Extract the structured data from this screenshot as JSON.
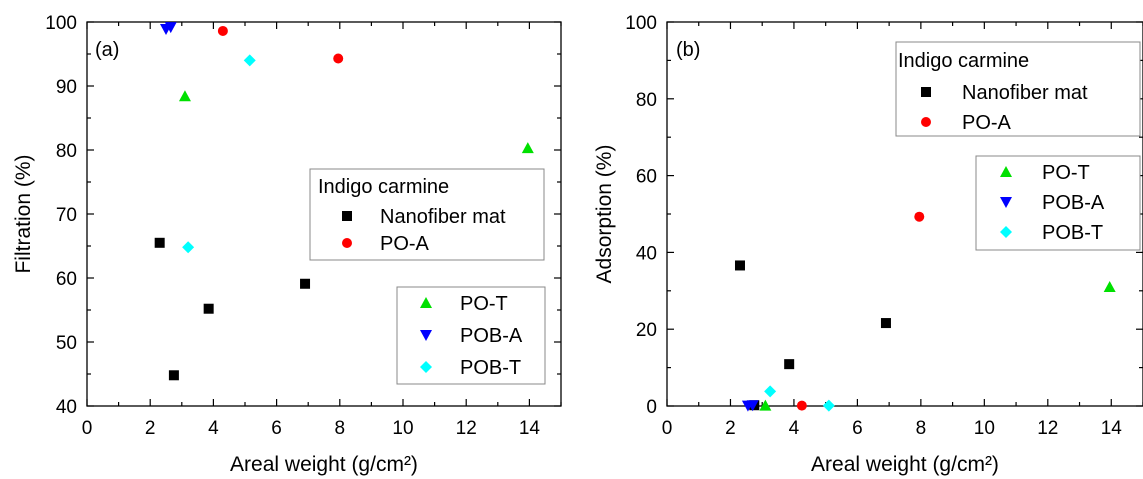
{
  "chart_data": [
    {
      "type": "scatter",
      "panel_label": "(a)",
      "xlabel": "Areal weight (g/cm²)",
      "ylabel": "Filtration (%)",
      "xlim": [
        0,
        15
      ],
      "ylim": [
        40,
        100
      ],
      "xticks": [
        0,
        2,
        4,
        6,
        8,
        10,
        12,
        14
      ],
      "yticks": [
        40,
        50,
        60,
        70,
        80,
        90,
        100
      ],
      "grid": false,
      "legend_title": "Indigo carmine",
      "legend_placement": "center-right",
      "series": [
        {
          "name": "Nanofiber mat",
          "marker": "square",
          "color": "#000000",
          "points": [
            [
              2.3,
              65.5
            ],
            [
              2.75,
              44.8
            ],
            [
              3.85,
              55.2
            ],
            [
              6.9,
              59.1
            ]
          ]
        },
        {
          "name": "PO-A",
          "marker": "circle",
          "color": "#ff0000",
          "points": [
            [
              4.3,
              98.6
            ],
            [
              7.95,
              94.3
            ]
          ]
        },
        {
          "name": "PO-T",
          "marker": "triangle-up",
          "color": "#00e000",
          "points": [
            [
              3.1,
              88.4
            ],
            [
              13.95,
              80.3
            ]
          ]
        },
        {
          "name": "POB-A",
          "marker": "triangle-down",
          "color": "#0000ff",
          "points": [
            [
              2.5,
              98.9
            ],
            [
              2.65,
              99.2
            ]
          ]
        },
        {
          "name": "POB-T",
          "marker": "diamond",
          "color": "#00ffff",
          "points": [
            [
              3.2,
              64.8
            ],
            [
              5.15,
              94.0
            ]
          ]
        }
      ]
    },
    {
      "type": "scatter",
      "panel_label": "(b)",
      "xlabel": "Areal weight (g/cm²)",
      "ylabel": "Adsorption (%)",
      "xlim": [
        0,
        15
      ],
      "ylim": [
        0,
        100
      ],
      "xticks": [
        0,
        2,
        4,
        6,
        8,
        10,
        12,
        14
      ],
      "yticks": [
        0,
        20,
        40,
        60,
        80,
        100
      ],
      "grid": false,
      "legend_title": "Indigo carmine",
      "legend_placement": "top-right",
      "series": [
        {
          "name": "Nanofiber mat",
          "marker": "square",
          "color": "#000000",
          "points": [
            [
              2.3,
              36.6
            ],
            [
              2.75,
              0.2
            ],
            [
              3.85,
              10.9
            ],
            [
              6.9,
              21.6
            ]
          ]
        },
        {
          "name": "PO-A",
          "marker": "circle",
          "color": "#ff0000",
          "points": [
            [
              4.25,
              0.1
            ],
            [
              7.95,
              49.3
            ]
          ]
        },
        {
          "name": "PO-T",
          "marker": "triangle-up",
          "color": "#00e000",
          "points": [
            [
              3.1,
              0.1
            ],
            [
              13.95,
              31.0
            ]
          ]
        },
        {
          "name": "POB-A",
          "marker": "triangle-down",
          "color": "#0000ff",
          "points": [
            [
              2.55,
              0.1
            ],
            [
              2.7,
              0.2
            ]
          ]
        },
        {
          "name": "POB-T",
          "marker": "diamond",
          "color": "#00ffff",
          "points": [
            [
              3.25,
              3.8
            ],
            [
              5.1,
              0.1
            ]
          ]
        }
      ]
    }
  ]
}
